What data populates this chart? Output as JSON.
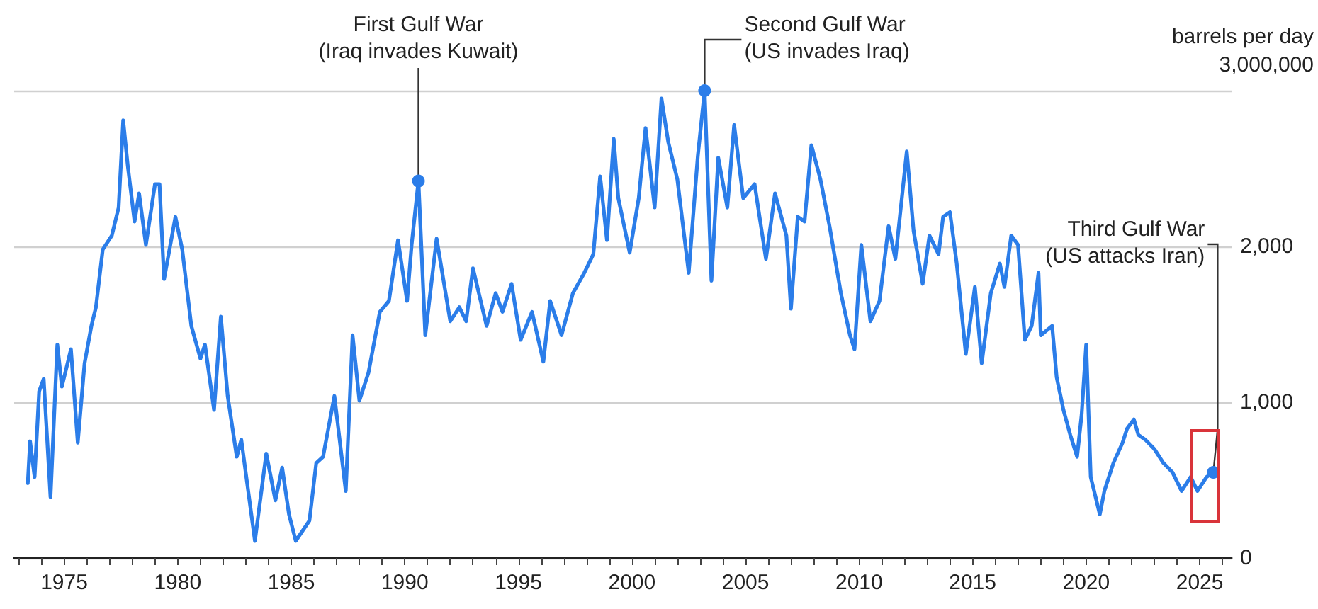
{
  "chart_data": {
    "type": "line",
    "ylabel": "barrels per day\n3,000,000",
    "x": [
      1973.4,
      1973.5,
      1973.7,
      1973.9,
      1974.1,
      1974.4,
      1974.7,
      1974.9,
      1975.3,
      1975.6,
      1975.9,
      1976.2,
      1976.4,
      1976.7,
      1977.1,
      1977.4,
      1977.6,
      1977.8,
      1978.1,
      1978.3,
      1978.6,
      1979.0,
      1979.2,
      1979.4,
      1979.9,
      1980.2,
      1980.6,
      1981.0,
      1981.2,
      1981.6,
      1981.9,
      1982.2,
      1982.6,
      1982.8,
      1983.4,
      1983.9,
      1984.3,
      1984.6,
      1984.9,
      1985.2,
      1985.8,
      1986.1,
      1986.4,
      1986.9,
      1987.4,
      1987.7,
      1988.0,
      1988.4,
      1988.9,
      1989.3,
      1989.7,
      1990.1,
      1990.3,
      1990.6,
      1990.9,
      1991.4,
      1992.0,
      1992.4,
      1992.7,
      1993.0,
      1993.6,
      1994.0,
      1994.3,
      1994.7,
      1995.1,
      1995.6,
      1996.1,
      1996.4,
      1996.9,
      1997.4,
      1997.9,
      1998.3,
      1998.6,
      1998.9,
      1999.2,
      1999.4,
      1999.9,
      2000.3,
      2000.6,
      2001.0,
      2001.3,
      2001.6,
      2002.0,
      2002.5,
      2002.9,
      2003.2,
      2003.5,
      2003.8,
      2004.2,
      2004.5,
      2004.9,
      2005.4,
      2005.9,
      2006.3,
      2006.8,
      2007.0,
      2007.3,
      2007.6,
      2007.9,
      2008.3,
      2008.7,
      2009.2,
      2009.6,
      2009.8,
      2010.1,
      2010.5,
      2010.9,
      2011.3,
      2011.6,
      2012.1,
      2012.4,
      2012.8,
      2013.1,
      2013.5,
      2013.7,
      2014.0,
      2014.3,
      2014.7,
      2015.1,
      2015.4,
      2015.8,
      2016.2,
      2016.4,
      2016.7,
      2017.0,
      2017.3,
      2017.6,
      2017.9,
      2018.0,
      2018.5,
      2018.7,
      2019.0,
      2019.3,
      2019.6,
      2019.8,
      2020.0,
      2020.2,
      2020.6,
      2020.8,
      2021.2,
      2021.6,
      2021.8,
      2022.1,
      2022.3,
      2022.6,
      2023.0,
      2023.4,
      2023.8,
      2024.2,
      2024.6,
      2024.9,
      2025.3,
      2025.6
    ],
    "series": [
      {
        "color": "#2b7de9",
        "values": [
          480,
          750,
          520,
          1070,
          1150,
          390,
          1370,
          1100,
          1340,
          740,
          1250,
          1490,
          1610,
          1980,
          2070,
          2250,
          2810,
          2520,
          2160,
          2340,
          2010,
          2400,
          2400,
          1790,
          2190,
          1980,
          1490,
          1280,
          1370,
          950,
          1550,
          1040,
          650,
          760,
          110,
          670,
          370,
          580,
          280,
          110,
          240,
          610,
          650,
          1040,
          430,
          1430,
          1010,
          1190,
          1580,
          1650,
          2040,
          1650,
          2010,
          2420,
          1430,
          2050,
          1520,
          1610,
          1520,
          1860,
          1490,
          1700,
          1580,
          1760,
          1400,
          1580,
          1260,
          1650,
          1430,
          1700,
          1830,
          1950,
          2450,
          2040,
          2690,
          2310,
          1960,
          2310,
          2760,
          2250,
          2950,
          2670,
          2430,
          1830,
          2580,
          3000,
          1780,
          2570,
          2250,
          2780,
          2310,
          2400,
          1920,
          2340,
          2070,
          1600,
          2190,
          2160,
          2650,
          2430,
          2130,
          1700,
          1430,
          1340,
          2010,
          1520,
          1650,
          2130,
          1920,
          2610,
          2100,
          1760,
          2070,
          1950,
          2190,
          2220,
          1890,
          1310,
          1740,
          1250,
          1700,
          1890,
          1740,
          2070,
          2010,
          1400,
          1490,
          1830,
          1430,
          1490,
          1160,
          950,
          790,
          650,
          920,
          1370,
          520,
          280,
          430,
          610,
          740,
          830,
          890,
          790,
          760,
          700,
          610,
          550,
          430,
          520,
          430,
          520,
          550
        ]
      }
    ],
    "xlim": [
      1972.8,
      2026.4
    ],
    "xticks": [
      {
        "value": 1973,
        "label": null
      },
      {
        "value": 1974,
        "label": null
      },
      1975,
      {
        "value": 1976,
        "label": null
      },
      {
        "value": 1977,
        "label": null
      },
      {
        "value": 1978,
        "label": null
      },
      {
        "value": 1979,
        "label": null
      },
      1980,
      {
        "value": 1981,
        "label": null
      },
      {
        "value": 1982,
        "label": null
      },
      {
        "value": 1983,
        "label": null
      },
      {
        "value": 1984,
        "label": null
      },
      1985,
      {
        "value": 1986,
        "label": null
      },
      {
        "value": 1987,
        "label": null
      },
      {
        "value": 1988,
        "label": null
      },
      {
        "value": 1989,
        "label": null
      },
      1990,
      {
        "value": 1991,
        "label": null
      },
      {
        "value": 1992,
        "label": null
      },
      {
        "value": 1993,
        "label": null
      },
      {
        "value": 1994,
        "label": null
      },
      1995,
      {
        "value": 1996,
        "label": null
      },
      {
        "value": 1997,
        "label": null
      },
      {
        "value": 1998,
        "label": null
      },
      {
        "value": 1999,
        "label": null
      },
      2000,
      {
        "value": 2001,
        "label": null
      },
      {
        "value": 2002,
        "label": null
      },
      {
        "value": 2003,
        "label": null
      },
      {
        "value": 2004,
        "label": null
      },
      2005,
      {
        "value": 2006,
        "label": null
      },
      {
        "value": 2007,
        "label": null
      },
      {
        "value": 2008,
        "label": null
      },
      {
        "value": 2009,
        "label": null
      },
      2010,
      {
        "value": 2011,
        "label": null
      },
      {
        "value": 2012,
        "label": null
      },
      {
        "value": 2013,
        "label": null
      },
      {
        "value": 2014,
        "label": null
      },
      2015,
      {
        "value": 2016,
        "label": null
      },
      {
        "value": 2017,
        "label": null
      },
      {
        "value": 2018,
        "label": null
      },
      {
        "value": 2019,
        "label": null
      },
      2020,
      {
        "value": 2021,
        "label": null
      },
      {
        "value": 2022,
        "label": null
      },
      {
        "value": 2023,
        "label": null
      },
      {
        "value": 2024,
        "label": null
      },
      2025,
      {
        "value": 2026,
        "label": null
      }
    ],
    "ylim": [
      0,
      3000
    ],
    "yticks": [
      0,
      {
        "value": 1000,
        "label": "1,000"
      },
      {
        "value": 2000,
        "label": "2,000"
      },
      {
        "value": 3000,
        "label": null
      }
    ],
    "grid": "y",
    "marker": "none",
    "line_style": "solid",
    "annotations": [
      {
        "text": "First Gulf War\n(Iraq invades Kuwait)",
        "x": 1990.6,
        "y": 2420
      },
      {
        "text": "Second Gulf War\n(US invades Iraq)",
        "x": 2003.2,
        "y": 3000
      },
      {
        "text": "Third Gulf War\n(US attacks Iran)",
        "x": 2025.6,
        "y": 550
      }
    ]
  }
}
